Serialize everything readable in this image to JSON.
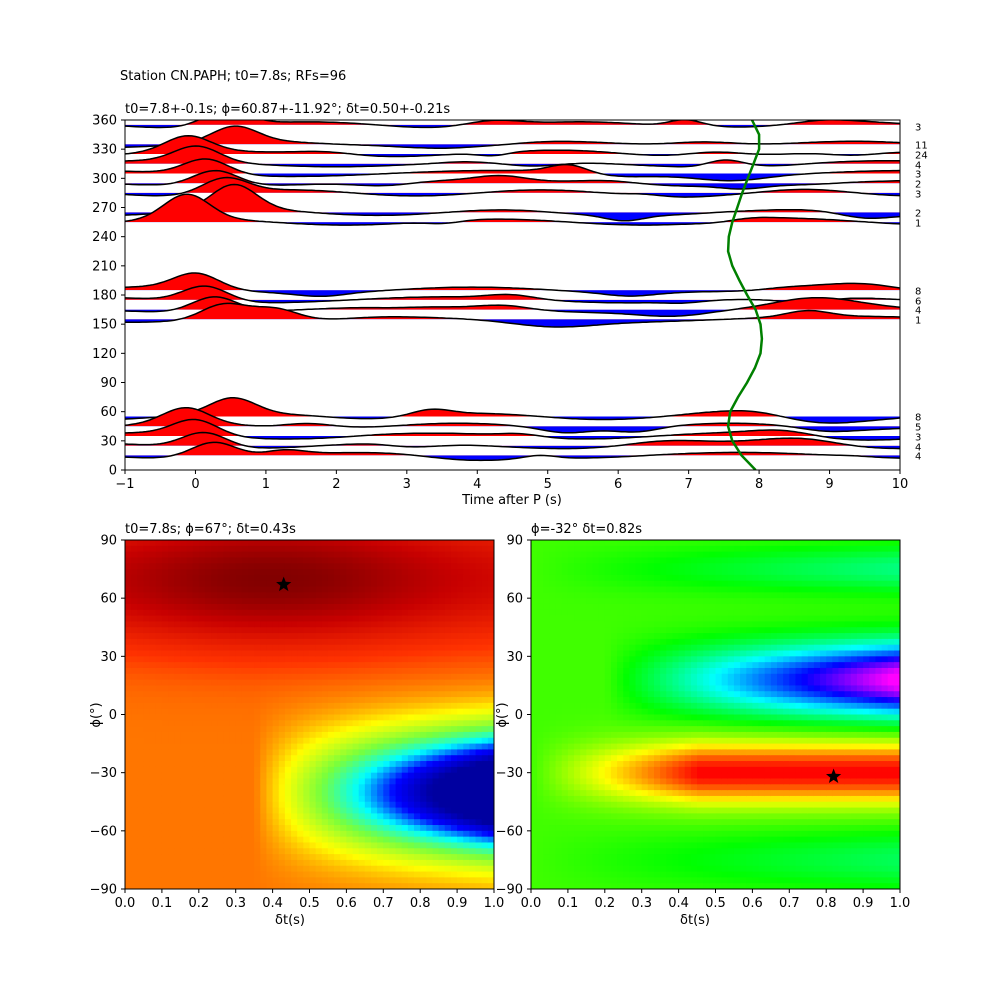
{
  "figure": {
    "suptitle": "Station CN.PAPH; t0=7.8s; RFs=96"
  },
  "chart_data": [
    {
      "type": "line",
      "name": "receiver-function-back-azimuth-stack",
      "title": "t0=7.8+-0.1s; ϕ=60.87+-11.92°; δt=0.50+-0.21s",
      "xlabel": "Time after P (s)",
      "ylabel": "",
      "xlim": [
        -1,
        10
      ],
      "ylim": [
        0,
        360
      ],
      "xticks": [
        -1,
        0,
        1,
        2,
        3,
        4,
        5,
        6,
        7,
        8,
        9,
        10
      ],
      "yticks": [
        0,
        30,
        60,
        90,
        120,
        150,
        180,
        210,
        240,
        270,
        300,
        330,
        360
      ],
      "grid": false,
      "fill_positive": "#ff0000",
      "fill_negative": "#0000ff",
      "trace_color": "#000000",
      "baz_bins": [
        355,
        335,
        325,
        315,
        305,
        295,
        285,
        265,
        255,
        185,
        175,
        165,
        155,
        55,
        45,
        35,
        25,
        15
      ],
      "stack_counts": [
        "3",
        "11",
        "24",
        "4",
        "3",
        "2",
        "3",
        "2",
        "1",
        "8",
        "6",
        "4",
        "1",
        "8",
        "5",
        "3",
        "4",
        "4"
      ],
      "t0_curve": {
        "color": "#008000",
        "baz": [
          0,
          15,
          30,
          45,
          60,
          75,
          90,
          105,
          120,
          135,
          150,
          165,
          180,
          195,
          210,
          225,
          240,
          255,
          270,
          285,
          300,
          315,
          330,
          345,
          360
        ],
        "time": [
          7.95,
          7.75,
          7.62,
          7.56,
          7.59,
          7.7,
          7.83,
          7.94,
          8.02,
          8.04,
          8.02,
          7.95,
          7.83,
          7.72,
          7.62,
          7.56,
          7.57,
          7.62,
          7.69,
          7.76,
          7.84,
          7.92,
          8.0,
          8.0,
          7.9
        ]
      }
    },
    {
      "type": "heatmap",
      "name": "energy-grid",
      "title": "t0=7.8s; ϕ=67°; δt=0.43s",
      "xlabel": "δt(s)",
      "ylabel": "ϕ(°)",
      "xlim": [
        0,
        1
      ],
      "ylim": [
        -90,
        90
      ],
      "xticks": [
        "0.0",
        "0.1",
        "0.2",
        "0.3",
        "0.4",
        "0.5",
        "0.6",
        "0.7",
        "0.8",
        "0.9",
        "1.0"
      ],
      "yticks": [
        -90,
        -60,
        -30,
        0,
        30,
        60,
        90
      ],
      "colormap": "hot-to-blue (jet-like)",
      "best": {
        "dt": 0.43,
        "phi": 67
      },
      "marker": "star"
    },
    {
      "type": "heatmap",
      "name": "transverse-energy-grid",
      "title": "ϕ=-32° δt=0.82s",
      "xlabel": "δt(s)",
      "ylabel": "ϕ(°)",
      "xlim": [
        0,
        1
      ],
      "ylim": [
        -90,
        90
      ],
      "xticks": [
        "0.0",
        "0.1",
        "0.2",
        "0.3",
        "0.4",
        "0.5",
        "0.6",
        "0.7",
        "0.8",
        "0.9",
        "1.0"
      ],
      "yticks": [
        -90,
        -60,
        -30,
        0,
        30,
        60,
        90
      ],
      "colormap": "hsv",
      "best": {
        "dt": 0.82,
        "phi": -32
      },
      "marker": "star"
    }
  ]
}
